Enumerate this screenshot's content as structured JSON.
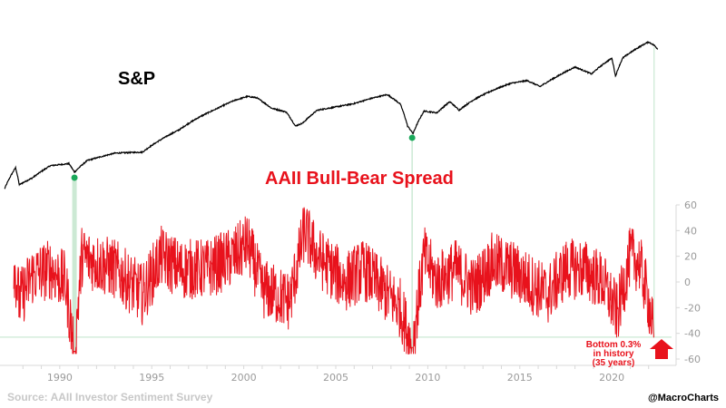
{
  "chart_data": {
    "type": "line",
    "title": "",
    "series": [
      {
        "name": "S&P",
        "color": "#000000",
        "points": [
          [
            1987.0,
            210
          ],
          [
            1987.6,
            330
          ],
          [
            1987.8,
            230
          ],
          [
            1988.5,
            265
          ],
          [
            1989.5,
            345
          ],
          [
            1990.5,
            360
          ],
          [
            1990.8,
            300
          ],
          [
            1991.5,
            385
          ],
          [
            1993.0,
            450
          ],
          [
            1994.5,
            460
          ],
          [
            1995.5,
            600
          ],
          [
            1996.5,
            740
          ],
          [
            1997.5,
            950
          ],
          [
            1998.5,
            1150
          ],
          [
            1999.5,
            1380
          ],
          [
            2000.2,
            1500
          ],
          [
            2000.7,
            1460
          ],
          [
            2001.5,
            1170
          ],
          [
            2002.3,
            1080
          ],
          [
            2002.8,
            800
          ],
          [
            2003.2,
            850
          ],
          [
            2004.0,
            1120
          ],
          [
            2005.0,
            1200
          ],
          [
            2006.0,
            1290
          ],
          [
            2007.0,
            1450
          ],
          [
            2007.8,
            1560
          ],
          [
            2008.5,
            1280
          ],
          [
            2008.9,
            800
          ],
          [
            2009.2,
            680
          ],
          [
            2009.8,
            1100
          ],
          [
            2010.5,
            1060
          ],
          [
            2011.2,
            1340
          ],
          [
            2011.7,
            1120
          ],
          [
            2012.5,
            1400
          ],
          [
            2013.5,
            1700
          ],
          [
            2014.5,
            1980
          ],
          [
            2015.4,
            2100
          ],
          [
            2016.1,
            1850
          ],
          [
            2017.0,
            2280
          ],
          [
            2018.0,
            2800
          ],
          [
            2018.9,
            2420
          ],
          [
            2019.5,
            2950
          ],
          [
            2020.0,
            3380
          ],
          [
            2020.2,
            2300
          ],
          [
            2020.6,
            3400
          ],
          [
            2021.0,
            3800
          ],
          [
            2021.5,
            4300
          ],
          [
            2021.99,
            4780
          ],
          [
            2022.3,
            4450
          ],
          [
            2022.5,
            4100
          ]
        ]
      },
      {
        "name": "AAII Bull-Bear Spread",
        "color": "#e8121c",
        "yrange": [
          -60,
          60
        ],
        "anchors": [
          [
            1987.5,
            15
          ],
          [
            1987.8,
            -15
          ],
          [
            1988.5,
            5
          ],
          [
            1989.5,
            10
          ],
          [
            1990.3,
            0
          ],
          [
            1990.8,
            -54
          ],
          [
            1991.2,
            20
          ],
          [
            1992.0,
            15
          ],
          [
            1993.0,
            10
          ],
          [
            1994.5,
            -10
          ],
          [
            1995.5,
            20
          ],
          [
            1996.5,
            10
          ],
          [
            1998.0,
            10
          ],
          [
            1999.5,
            20
          ],
          [
            2000.2,
            30
          ],
          [
            2001.0,
            -5
          ],
          [
            2002.5,
            -15
          ],
          [
            2003.3,
            40
          ],
          [
            2004.0,
            20
          ],
          [
            2005.5,
            0
          ],
          [
            2006.5,
            10
          ],
          [
            2007.5,
            -5
          ],
          [
            2008.5,
            -20
          ],
          [
            2009.15,
            -51
          ],
          [
            2009.8,
            20
          ],
          [
            2010.5,
            0
          ],
          [
            2011.5,
            10
          ],
          [
            2012.5,
            -5
          ],
          [
            2013.5,
            15
          ],
          [
            2014.5,
            10
          ],
          [
            2015.5,
            0
          ],
          [
            2016.5,
            -10
          ],
          [
            2017.5,
            10
          ],
          [
            2018.5,
            10
          ],
          [
            2019.5,
            0
          ],
          [
            2020.3,
            -25
          ],
          [
            2021.0,
            20
          ],
          [
            2021.5,
            15
          ],
          [
            2022.0,
            -15
          ],
          [
            2022.3,
            -43
          ]
        ]
      }
    ],
    "xlim": [
      1987,
      2023
    ],
    "xticks": [
      1990,
      1995,
      2000,
      2005,
      2010,
      2015,
      2020
    ],
    "yticks_right": [
      60,
      40,
      20,
      0,
      -20,
      -40,
      -60
    ],
    "reference_line": -43,
    "markers_years": [
      1990.8,
      2009.15
    ],
    "grid": false,
    "legend": "none",
    "labels": {
      "sp": "S&P",
      "spread": "AAII Bull-Bear Spread"
    },
    "annotation": {
      "line1": "Bottom 0.3%",
      "line2": "in history",
      "line3": "(35 years)"
    }
  },
  "footer": {
    "source": "Source: AAII Investor Sentiment Survey",
    "handle": "@MacroCharts"
  },
  "colors": {
    "marker": "#1aa85a",
    "guide": "#bfe3c9",
    "axis": "#d8d8d8",
    "arrow": "#e8121c"
  }
}
